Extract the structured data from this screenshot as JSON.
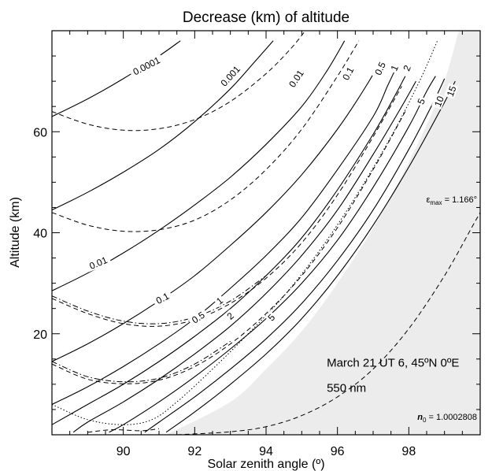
{
  "chart_data": {
    "type": "line",
    "title": "Decrease (km) of altitude",
    "xlabel": "Solar zenith angle (º)",
    "ylabel": "Altitude (km)",
    "xlim": [
      88,
      100
    ],
    "ylim": [
      0,
      80
    ],
    "xticks": [
      90,
      92,
      94,
      96,
      98
    ],
    "yticks": [
      20,
      40,
      60
    ],
    "grid": false,
    "series": [
      {
        "label": "0.0001",
        "style": "solid",
        "points": [
          [
            88,
            63
          ],
          [
            89,
            66.5
          ],
          [
            90,
            70.5
          ],
          [
            91,
            75
          ],
          [
            91.6,
            78
          ]
        ]
      },
      {
        "label": "0.001",
        "style": "solid",
        "points": [
          [
            88,
            44.5
          ],
          [
            89,
            48
          ],
          [
            90,
            52
          ],
          [
            91,
            56.5
          ],
          [
            92,
            62
          ],
          [
            93,
            68.5
          ],
          [
            93.7,
            74
          ],
          [
            94.2,
            78
          ]
        ]
      },
      {
        "label": "0.01",
        "style": "solid",
        "points": [
          [
            88,
            28.5
          ],
          [
            89,
            32
          ],
          [
            90,
            36
          ],
          [
            91,
            40.5
          ],
          [
            92,
            45.5
          ],
          [
            93,
            51
          ],
          [
            94,
            57.5
          ],
          [
            95,
            65
          ],
          [
            95.7,
            72
          ],
          [
            96.2,
            78
          ]
        ]
      },
      {
        "label": "0.1",
        "style": "solid",
        "points": [
          [
            88,
            14.5
          ],
          [
            89,
            18
          ],
          [
            90,
            22
          ],
          [
            91,
            26.5
          ],
          [
            92,
            31.5
          ],
          [
            93,
            37.5
          ],
          [
            94,
            44
          ],
          [
            95,
            51.5
          ],
          [
            96,
            60.5
          ],
          [
            96.8,
            69
          ],
          [
            97.2,
            74
          ]
        ]
      },
      {
        "label": "0.5",
        "style": "solid",
        "points": [
          [
            88,
            6
          ],
          [
            89,
            9.5
          ],
          [
            90,
            13.5
          ],
          [
            91,
            18
          ],
          [
            92,
            23
          ],
          [
            93,
            29
          ],
          [
            94,
            35.5
          ],
          [
            95,
            43
          ],
          [
            96,
            52.5
          ],
          [
            97,
            63
          ],
          [
            97.4,
            69
          ],
          [
            97.6,
            72
          ]
        ]
      },
      {
        "label": "1",
        "style": "solid",
        "points": [
          [
            88,
            2
          ],
          [
            89,
            6
          ],
          [
            90,
            10
          ],
          [
            91,
            14.5
          ],
          [
            92,
            19.5
          ],
          [
            93,
            25
          ],
          [
            94,
            31.5
          ],
          [
            95,
            39
          ],
          [
            96,
            48.5
          ],
          [
            97,
            59.5
          ],
          [
            97.6,
            67
          ],
          [
            97.9,
            71
          ]
        ]
      },
      {
        "label": "2",
        "style": "solid",
        "points": [
          [
            88.6,
            0.5
          ],
          [
            89,
            2.5
          ],
          [
            90,
            6.5
          ],
          [
            91,
            11
          ],
          [
            92,
            16
          ],
          [
            93,
            21.5
          ],
          [
            94,
            28
          ],
          [
            95,
            35.5
          ],
          [
            96,
            44.5
          ],
          [
            97,
            55.5
          ],
          [
            97.8,
            65
          ],
          [
            98.2,
            70
          ]
        ]
      },
      {
        "label": "5",
        "style": "solid",
        "points": [
          [
            89.6,
            0.5
          ],
          [
            90,
            2
          ],
          [
            91,
            6.5
          ],
          [
            92,
            11.5
          ],
          [
            93,
            17
          ],
          [
            94,
            23
          ],
          [
            95,
            30
          ],
          [
            96,
            38.5
          ],
          [
            97,
            49
          ],
          [
            98,
            61
          ],
          [
            98.5,
            68
          ],
          [
            98.75,
            71
          ]
        ]
      },
      {
        "label": "10",
        "style": "solid",
        "points": [
          [
            90.6,
            0.5
          ],
          [
            91,
            2.5
          ],
          [
            92,
            7.5
          ],
          [
            93,
            13
          ],
          [
            94,
            19
          ],
          [
            95,
            26
          ],
          [
            96,
            34.5
          ],
          [
            97,
            44.5
          ],
          [
            98,
            56.5
          ],
          [
            98.7,
            66
          ],
          [
            99,
            70.5
          ]
        ]
      },
      {
        "label": "15",
        "style": "solid",
        "points": [
          [
            91.2,
            0.5
          ],
          [
            92,
            4.5
          ],
          [
            93,
            10
          ],
          [
            94,
            16
          ],
          [
            95,
            23
          ],
          [
            96,
            31.5
          ],
          [
            97,
            41.5
          ],
          [
            98,
            53
          ],
          [
            98.9,
            64.5
          ],
          [
            99.3,
            70
          ]
        ]
      },
      {
        "label": "",
        "style": "dashed",
        "points": [
          [
            88,
            64
          ],
          [
            89,
            61.5
          ],
          [
            90,
            60.3
          ],
          [
            91,
            60.6
          ],
          [
            92,
            62.4
          ],
          [
            93,
            66
          ],
          [
            94,
            71.5
          ],
          [
            94.7,
            76.5
          ],
          [
            95.1,
            80
          ]
        ]
      },
      {
        "label": "",
        "style": "dashed",
        "points": [
          [
            88,
            44
          ],
          [
            89,
            41.5
          ],
          [
            90,
            40.3
          ],
          [
            91,
            40.6
          ],
          [
            92,
            42.5
          ],
          [
            93,
            46.5
          ],
          [
            94,
            52.5
          ],
          [
            95,
            60.5
          ],
          [
            96,
            71
          ],
          [
            96.6,
            78
          ]
        ]
      },
      {
        "label": "",
        "style": "dashed",
        "points": [
          [
            88,
            27
          ],
          [
            89,
            24
          ],
          [
            90,
            22
          ],
          [
            91,
            21.5
          ],
          [
            92,
            22.8
          ],
          [
            93,
            26
          ],
          [
            94,
            31
          ],
          [
            95,
            38
          ],
          [
            96,
            47.5
          ],
          [
            97,
            59
          ],
          [
            97.8,
            69
          ]
        ]
      },
      {
        "label": "",
        "style": "dashed",
        "points": [
          [
            88,
            14
          ],
          [
            89,
            11
          ],
          [
            90,
            10.1
          ],
          [
            91,
            10.8
          ],
          [
            92,
            13.5
          ],
          [
            93,
            18
          ],
          [
            94,
            24
          ],
          [
            95,
            31.5
          ],
          [
            96,
            41
          ],
          [
            97,
            52.5
          ],
          [
            97.9,
            64
          ]
        ]
      },
      {
        "label": "",
        "style": "dashed",
        "points": [
          [
            89,
            0.5
          ],
          [
            89.7,
            1
          ],
          [
            90.5,
            0.8
          ],
          [
            91,
            1.2
          ]
        ]
      },
      {
        "label": "",
        "style": "dashdot",
        "points": [
          [
            88,
            27.5
          ],
          [
            89,
            24.5
          ],
          [
            90,
            22.5
          ],
          [
            91,
            22
          ],
          [
            92,
            23.3
          ],
          [
            93,
            26.5
          ],
          [
            94,
            31.5
          ]
        ]
      },
      {
        "label": "",
        "style": "dashdot",
        "points": [
          [
            88,
            14.5
          ],
          [
            89,
            11.5
          ],
          [
            90,
            10.5
          ],
          [
            91,
            11.2
          ],
          [
            92,
            14
          ],
          [
            93,
            18.5
          ]
        ]
      },
      {
        "label": "",
        "style": "dotted",
        "points": [
          [
            88,
            6
          ],
          [
            89,
            3
          ],
          [
            90,
            2
          ],
          [
            90.8,
            3
          ],
          [
            91.5,
            6.5
          ],
          [
            92.5,
            13
          ],
          [
            93.5,
            20
          ],
          [
            94.5,
            27.5
          ],
          [
            95.5,
            36.5
          ],
          [
            96.5,
            47
          ],
          [
            97.5,
            59
          ],
          [
            98.3,
            70
          ],
          [
            98.8,
            78
          ]
        ]
      },
      {
        "label": "",
        "style": "dashed",
        "points": [
          [
            91.5,
            0
          ],
          [
            93,
            0.6
          ],
          [
            94,
            1.6
          ],
          [
            95,
            3.8
          ],
          [
            96,
            7.5
          ],
          [
            97,
            13
          ],
          [
            98,
            21
          ],
          [
            99,
            31.5
          ],
          [
            99.8,
            41.5
          ],
          [
            100,
            44
          ]
        ]
      }
    ],
    "white_band_edge": [
      [
        91.2,
        0
      ],
      [
        93,
        6.5
      ],
      [
        94,
        13
      ],
      [
        95,
        20.5
      ],
      [
        96,
        30
      ],
      [
        97,
        41
      ],
      [
        98,
        54
      ],
      [
        98.9,
        68
      ],
      [
        99.4,
        80
      ]
    ],
    "light_gray_edge": [
      [
        91.5,
        0
      ],
      [
        93,
        5
      ],
      [
        94,
        10.5
      ],
      [
        95,
        17.5
      ],
      [
        96,
        26
      ],
      [
        97,
        36.5
      ],
      [
        98,
        49
      ],
      [
        99,
        63.5
      ],
      [
        99.6,
        73
      ],
      [
        100,
        79
      ]
    ],
    "colors": {
      "dark_gray": "#dcdcdc",
      "light_gray": "#ececec",
      "line": "#000000"
    },
    "annotations": {
      "epsilon": {
        "prefix": "ε",
        "sub": "max",
        "rest": " = 1.166°",
        "x": 100.15,
        "y": 46
      },
      "date_line": {
        "text": "March 21 UT 6, 45ºN 0ºE",
        "x": 95.7,
        "y": 13.5
      },
      "wavelength": {
        "text": "550 nm",
        "x": 95.7,
        "y": 8.5
      },
      "n0": {
        "prefix": "n",
        "sub": "0",
        "rest": " = 1.0002808",
        "x": 100.15,
        "y": 3
      }
    },
    "contour_labels": [
      {
        "text": "0.0001",
        "x": 90.65,
        "y": 73,
        "angle": -27
      },
      {
        "text": "0.001",
        "x": 93.0,
        "y": 71,
        "angle": -48
      },
      {
        "text": "0.01",
        "x": 94.85,
        "y": 70.5,
        "angle": -56
      },
      {
        "text": "0.1",
        "x": 96.3,
        "y": 71.5,
        "angle": -62
      },
      {
        "text": "0.5",
        "x": 97.2,
        "y": 72.5,
        "angle": -65
      },
      {
        "text": "1",
        "x": 97.6,
        "y": 72.6,
        "angle": -66
      },
      {
        "text": "2",
        "x": 97.95,
        "y": 72.6,
        "angle": -67
      },
      {
        "text": "5",
        "x": 98.35,
        "y": 66,
        "angle": -68
      },
      {
        "text": "10",
        "x": 98.85,
        "y": 66,
        "angle": -68
      },
      {
        "text": "15",
        "x": 99.2,
        "y": 68,
        "angle": -69
      },
      {
        "text": "0.01",
        "x": 89.3,
        "y": 34,
        "angle": -23
      },
      {
        "text": "0.1",
        "x": 91.1,
        "y": 27,
        "angle": -28
      },
      {
        "text": "0.5",
        "x": 92.1,
        "y": 23.2,
        "angle": -34
      },
      {
        "text": "1",
        "x": 92.7,
        "y": 26.5,
        "angle": -38
      },
      {
        "text": "2",
        "x": 93.0,
        "y": 23.5,
        "angle": -42
      },
      {
        "text": "5",
        "x": 94.15,
        "y": 23.2,
        "angle": -47
      }
    ]
  }
}
